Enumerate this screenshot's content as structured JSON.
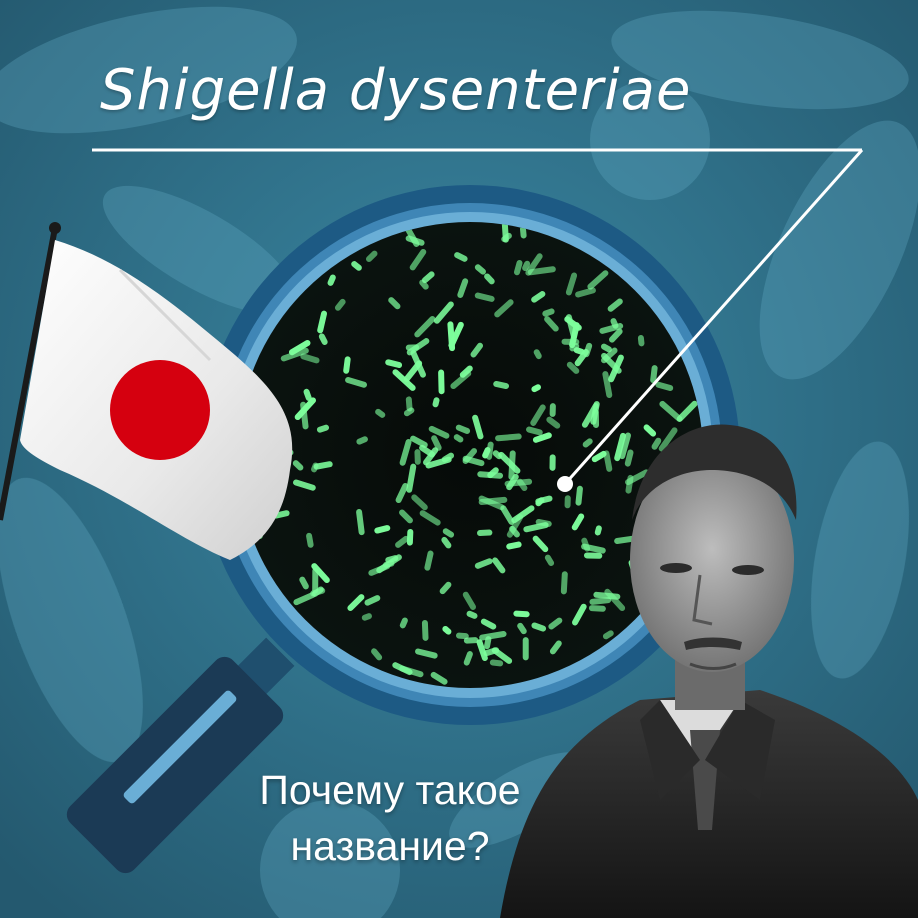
{
  "title": "Shigella dysenteriae",
  "question": {
    "line1": "Почему такое",
    "line2": "название?"
  },
  "colors": {
    "background": "#2f6f88",
    "lens_ring_outer": "#1d5a84",
    "lens_ring_inner": "#6aaed6",
    "bacteria": "#7dff9c",
    "flag_white": "#f4f4f4",
    "flag_red": "#d5000f",
    "text": "#ffffff"
  },
  "icons": {
    "flag": "japan-flag",
    "magnifier": "magnifying-glass-icon",
    "portrait": "person-portrait"
  }
}
